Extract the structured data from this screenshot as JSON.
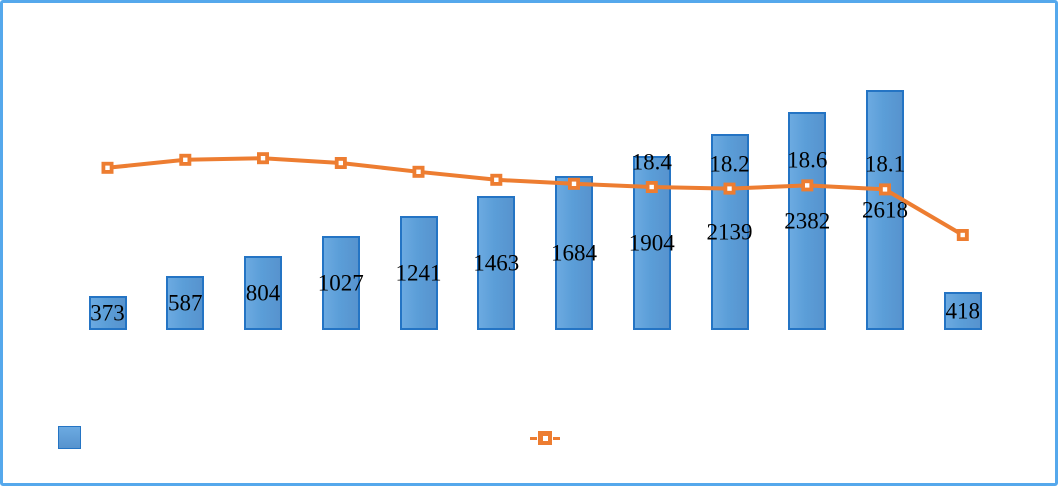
{
  "frame": {
    "background": "#ffffff",
    "border_color": "#55a8ec"
  },
  "chart_data": {
    "type": "combo-bar-line",
    "title": "",
    "categories": [
      "",
      "",
      "",
      "",
      "",
      "",
      "",
      "",
      "",
      "",
      "",
      ""
    ],
    "categories_visible": false,
    "axes_visible": false,
    "gridlines": false,
    "text_color": "#000000",
    "series": [
      {
        "name": "bar-series",
        "type": "bar",
        "fill_color": "#5b9ed8",
        "border_color": "#2474c4",
        "values": [
          373,
          587,
          804,
          1027,
          1241,
          1463,
          1684,
          1904,
          2139,
          2382,
          2618,
          418
        ],
        "data_labels": [
          "373",
          "587",
          "804",
          "1027",
          "1241",
          "1463",
          "1684",
          "1904",
          "2139",
          "2382",
          "2618",
          "418"
        ],
        "label_position": "center-of-bar"
      },
      {
        "name": "line-series",
        "type": "line",
        "color": "#ed7d31",
        "marker": {
          "shape": "square",
          "fill": "#ed7d31",
          "inner": "#ffffff"
        },
        "values": [
          20.8,
          21.8,
          22.0,
          21.4,
          20.3,
          19.3,
          18.8,
          18.4,
          18.2,
          18.6,
          18.1,
          12.4
        ],
        "values_note": "Only points 8-11 show printed labels; remaining values estimated from plotted line height",
        "data_labels": [
          "",
          "",
          "",
          "",
          "",
          "",
          "",
          "18.4",
          "18.2",
          "18.6",
          "18.1",
          ""
        ],
        "label_position": "above-marker"
      }
    ],
    "legend": {
      "position": "bottom",
      "entries": [
        {
          "series": "bar-series",
          "swatch": "blue-square",
          "label": ""
        },
        {
          "series": "line-series",
          "swatch": "orange-dash-square-dash",
          "label": ""
        }
      ]
    }
  }
}
